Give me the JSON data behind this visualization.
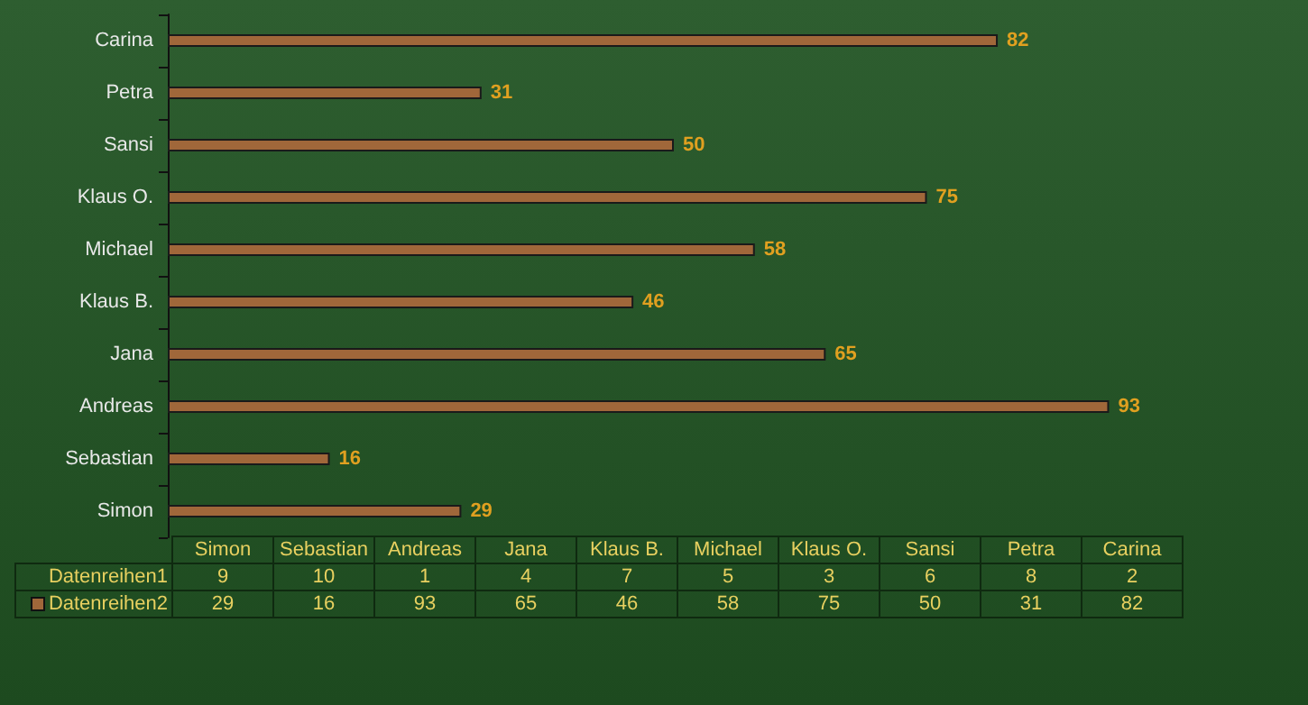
{
  "chart_data": [
    {
      "type": "bar",
      "orientation": "horizontal",
      "categories": [
        "Carina",
        "Petra",
        "Sansi",
        "Klaus O.",
        "Michael",
        "Klaus B.",
        "Jana",
        "Andreas",
        "Sebastian",
        "Simon"
      ],
      "series": [
        {
          "color": "#a0673a",
          "values": [
            82,
            31,
            50,
            75,
            58,
            46,
            65,
            93,
            16,
            29
          ]
        }
      ],
      "data_labels": true
    },
    {
      "type": "other",
      "categories": [
        "Simon",
        "Sebastian",
        "Andreas",
        "Jana",
        "Klaus B.",
        "Michael",
        "Klaus O.",
        "Sansi",
        "Petra",
        "Carina"
      ],
      "series": [
        {
          "name": "Datenreihen1",
          "values": [
            9,
            10,
            1,
            4,
            7,
            5,
            3,
            6,
            8,
            2
          ]
        },
        {
          "name": "Datenreihen2",
          "color": "#a0673a",
          "values": [
            29,
            16,
            93,
            65,
            46,
            58,
            75,
            50,
            31,
            82
          ]
        }
      ],
      "data_labels": true
    }
  ]
}
